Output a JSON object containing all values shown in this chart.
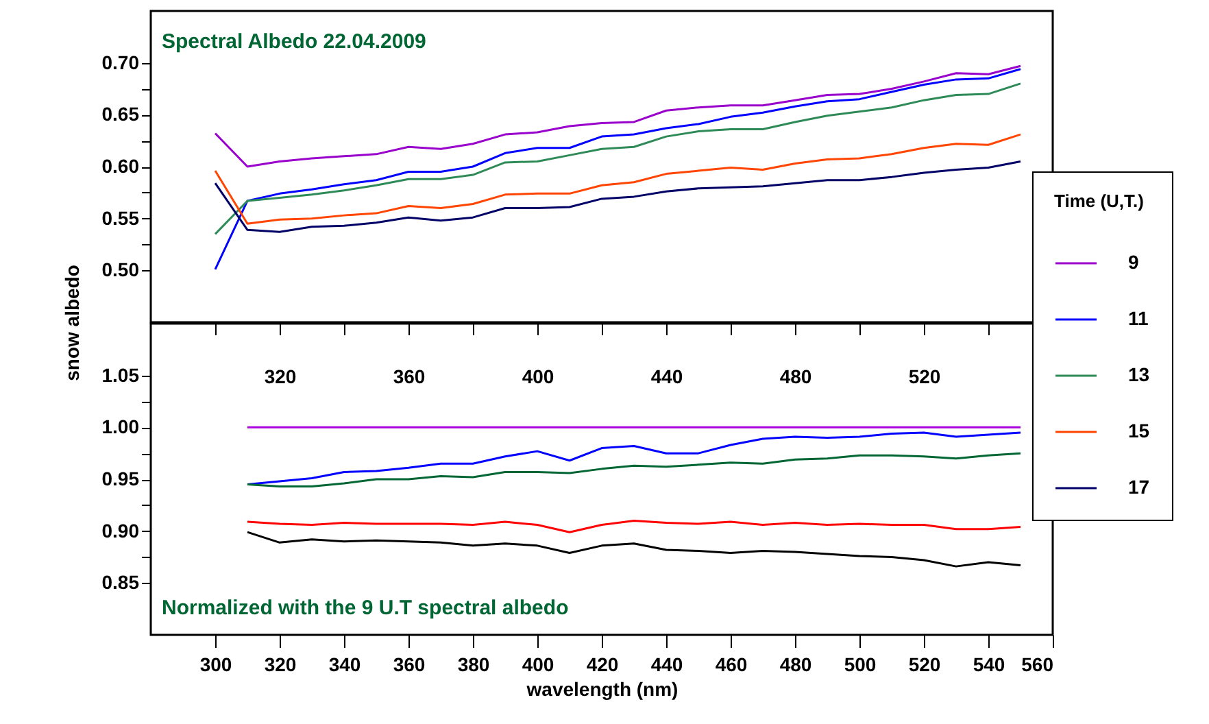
{
  "chart_data": [
    {
      "type": "line",
      "annotations": [
        "Spectral Albedo 22.04.2009"
      ],
      "ylabel": "snow albedo",
      "legend_title": "Time (U,T.)",
      "legend": "right",
      "grid": false,
      "x": [
        300,
        310,
        320,
        330,
        340,
        350,
        360,
        370,
        380,
        390,
        400,
        410,
        420,
        430,
        440,
        450,
        460,
        470,
        480,
        490,
        500,
        510,
        520,
        530,
        540,
        550
      ],
      "xlim": [
        280,
        560
      ],
      "xticks": [
        {
          "value": 300,
          "label": null
        },
        320,
        {
          "value": 340,
          "label": null
        },
        360,
        {
          "value": 380,
          "label": null
        },
        400,
        {
          "value": 420,
          "label": null
        },
        440,
        {
          "value": 460,
          "label": null
        },
        480,
        {
          "value": 500,
          "label": null
        },
        520,
        {
          "value": 540,
          "label": null
        }
      ],
      "ylim": [
        0.45,
        0.75
      ],
      "yticks": [
        {
          "value": 0.5,
          "label": "0.50"
        },
        {
          "value": 0.525,
          "label": null
        },
        {
          "value": 0.55,
          "label": "0.55"
        },
        {
          "value": 0.575,
          "label": null
        },
        {
          "value": 0.6,
          "label": "0.60"
        },
        {
          "value": 0.625,
          "label": null
        },
        {
          "value": 0.65,
          "label": "0.65"
        },
        {
          "value": 0.675,
          "label": null
        },
        {
          "value": 0.7,
          "label": "0.70"
        }
      ],
      "series": [
        {
          "name": "9",
          "color": "#9900cc",
          "values": [
            0.632,
            0.6,
            0.605,
            0.608,
            0.61,
            0.612,
            0.619,
            0.617,
            0.622,
            0.631,
            0.633,
            0.639,
            0.642,
            0.643,
            0.654,
            0.657,
            0.659,
            0.659,
            0.664,
            0.669,
            0.67,
            0.675,
            0.682,
            0.69,
            0.689,
            0.697
          ]
        },
        {
          "name": "11",
          "color": "#0000ff",
          "values": [
            0.501,
            0.567,
            0.574,
            0.578,
            0.583,
            0.587,
            0.595,
            0.595,
            0.6,
            0.613,
            0.618,
            0.618,
            0.629,
            0.631,
            0.637,
            0.641,
            0.648,
            0.652,
            0.658,
            0.663,
            0.665,
            0.672,
            0.679,
            0.684,
            0.685,
            0.694
          ]
        },
        {
          "name": "13",
          "color": "#2e8b57",
          "values": [
            0.535,
            0.567,
            0.57,
            0.573,
            0.577,
            0.582,
            0.588,
            0.588,
            0.592,
            0.604,
            0.605,
            0.611,
            0.617,
            0.619,
            0.629,
            0.634,
            0.636,
            0.636,
            0.643,
            0.649,
            0.653,
            0.657,
            0.664,
            0.669,
            0.67,
            0.68
          ]
        },
        {
          "name": "15",
          "color": "#ff4500",
          "values": [
            0.596,
            0.545,
            0.549,
            0.55,
            0.553,
            0.555,
            0.562,
            0.56,
            0.564,
            0.573,
            0.574,
            0.574,
            0.582,
            0.585,
            0.593,
            0.596,
            0.599,
            0.597,
            0.603,
            0.607,
            0.608,
            0.612,
            0.618,
            0.622,
            0.621,
            0.631
          ]
        },
        {
          "name": "17",
          "color": "#000066",
          "values": [
            0.584,
            0.539,
            0.537,
            0.542,
            0.543,
            0.546,
            0.551,
            0.548,
            0.551,
            0.56,
            0.56,
            0.561,
            0.569,
            0.571,
            0.576,
            0.579,
            0.58,
            0.581,
            0.584,
            0.587,
            0.587,
            0.59,
            0.594,
            0.597,
            0.599,
            0.605
          ]
        }
      ]
    },
    {
      "type": "line",
      "annotations": [
        "Normalized with the 9 U.T spectral albedo"
      ],
      "xlabel": "wavelength (nm)",
      "grid": false,
      "x": [
        310,
        320,
        330,
        340,
        350,
        360,
        370,
        380,
        390,
        400,
        410,
        420,
        430,
        440,
        450,
        460,
        470,
        480,
        490,
        500,
        510,
        520,
        530,
        540,
        550
      ],
      "xlim": [
        280,
        560
      ],
      "xticks": [
        300,
        320,
        340,
        360,
        380,
        400,
        420,
        440,
        460,
        480,
        500,
        520,
        540,
        560
      ],
      "ylim": [
        0.8,
        1.1
      ],
      "yticks": [
        {
          "value": 0.85,
          "label": "0.85"
        },
        {
          "value": 0.875,
          "label": null
        },
        {
          "value": 0.9,
          "label": "0.90"
        },
        {
          "value": 0.925,
          "label": null
        },
        {
          "value": 0.95,
          "label": "0.95"
        },
        {
          "value": 0.975,
          "label": null
        },
        {
          "value": 1,
          "label": "1.00"
        },
        {
          "value": 1.025,
          "label": null
        },
        {
          "value": 1.05,
          "label": "1.05"
        }
      ],
      "series": [
        {
          "color": "#aa00dd",
          "values": [
            1,
            1,
            1,
            1,
            1,
            1,
            1,
            1,
            1,
            1,
            1,
            1,
            1,
            1,
            1,
            1,
            1,
            1,
            1,
            1,
            1,
            1,
            1,
            1,
            1
          ]
        },
        {
          "color": "#0000ff",
          "values": [
            0.945,
            0.948,
            0.951,
            0.957,
            0.958,
            0.961,
            0.965,
            0.965,
            0.972,
            0.977,
            0.968,
            0.98,
            0.982,
            0.975,
            0.975,
            0.983,
            0.989,
            0.991,
            0.99,
            0.991,
            0.994,
            0.995,
            0.991,
            0.993,
            0.995
          ]
        },
        {
          "color": "#006633",
          "values": [
            0.945,
            0.943,
            0.943,
            0.946,
            0.95,
            0.95,
            0.953,
            0.952,
            0.957,
            0.957,
            0.956,
            0.96,
            0.963,
            0.962,
            0.964,
            0.966,
            0.965,
            0.969,
            0.97,
            0.973,
            0.973,
            0.972,
            0.97,
            0.973,
            0.975
          ]
        },
        {
          "color": "#ff0000",
          "values": [
            0.909,
            0.907,
            0.906,
            0.908,
            0.907,
            0.907,
            0.907,
            0.906,
            0.909,
            0.906,
            0.899,
            0.906,
            0.91,
            0.908,
            0.907,
            0.909,
            0.906,
            0.908,
            0.906,
            0.907,
            0.906,
            0.906,
            0.902,
            0.902,
            0.904
          ]
        },
        {
          "color": "#000000",
          "values": [
            0.899,
            0.889,
            0.892,
            0.89,
            0.891,
            0.89,
            0.889,
            0.886,
            0.888,
            0.886,
            0.879,
            0.886,
            0.888,
            0.882,
            0.881,
            0.879,
            0.881,
            0.88,
            0.878,
            0.876,
            0.875,
            0.872,
            0.866,
            0.87,
            0.867
          ]
        }
      ]
    }
  ]
}
